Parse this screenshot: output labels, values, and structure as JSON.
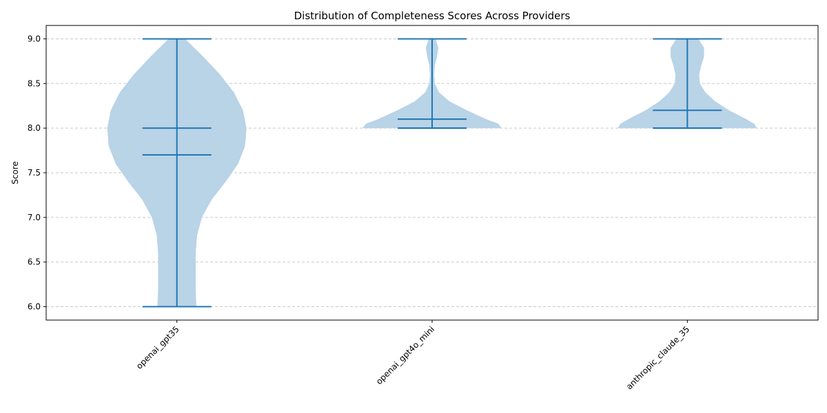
{
  "chart_data": {
    "type": "violin",
    "title": "Distribution of Completeness Scores Across Providers",
    "xlabel": "",
    "ylabel": "Score",
    "ylim": [
      5.85,
      9.15
    ],
    "yticks": [
      "6.0",
      "6.5",
      "7.0",
      "7.5",
      "8.0",
      "8.5",
      "9.0"
    ],
    "grid": "y-dashed",
    "categories": [
      "openai_gpt35",
      "openai_gpt4o_mini",
      "anthropic_claude_35"
    ],
    "colors": {
      "body": "#b9d3e7",
      "line": "#1f77b4",
      "grid": "#c8c8c8"
    },
    "series": [
      {
        "category": "openai_gpt35",
        "min": 6.0,
        "max": 9.0,
        "median": 8.0,
        "mean": 7.7,
        "density": [
          [
            6.0,
            0.28
          ],
          [
            6.2,
            0.27
          ],
          [
            6.4,
            0.27
          ],
          [
            6.6,
            0.27
          ],
          [
            6.8,
            0.29
          ],
          [
            7.0,
            0.36
          ],
          [
            7.2,
            0.5
          ],
          [
            7.4,
            0.7
          ],
          [
            7.6,
            0.88
          ],
          [
            7.8,
            0.98
          ],
          [
            8.0,
            1.0
          ],
          [
            8.2,
            0.95
          ],
          [
            8.4,
            0.82
          ],
          [
            8.6,
            0.62
          ],
          [
            8.8,
            0.38
          ],
          [
            9.0,
            0.12
          ]
        ]
      },
      {
        "category": "openai_gpt4o_mini",
        "min": 8.0,
        "max": 9.0,
        "median": 8.0,
        "mean": 8.1,
        "density": [
          [
            8.0,
            1.0
          ],
          [
            8.05,
            0.95
          ],
          [
            8.1,
            0.78
          ],
          [
            8.2,
            0.5
          ],
          [
            8.3,
            0.25
          ],
          [
            8.4,
            0.1
          ],
          [
            8.5,
            0.04
          ],
          [
            8.6,
            0.03
          ],
          [
            8.7,
            0.04
          ],
          [
            8.8,
            0.07
          ],
          [
            8.9,
            0.09
          ],
          [
            9.0,
            0.05
          ]
        ]
      },
      {
        "category": "anthropic_claude_35",
        "min": 8.0,
        "max": 9.0,
        "median": 8.0,
        "mean": 8.2,
        "density": [
          [
            8.0,
            1.0
          ],
          [
            8.05,
            0.96
          ],
          [
            8.1,
            0.85
          ],
          [
            8.2,
            0.6
          ],
          [
            8.3,
            0.4
          ],
          [
            8.4,
            0.26
          ],
          [
            8.5,
            0.18
          ],
          [
            8.6,
            0.17
          ],
          [
            8.7,
            0.2
          ],
          [
            8.8,
            0.24
          ],
          [
            8.9,
            0.24
          ],
          [
            9.0,
            0.16
          ]
        ]
      }
    ]
  }
}
